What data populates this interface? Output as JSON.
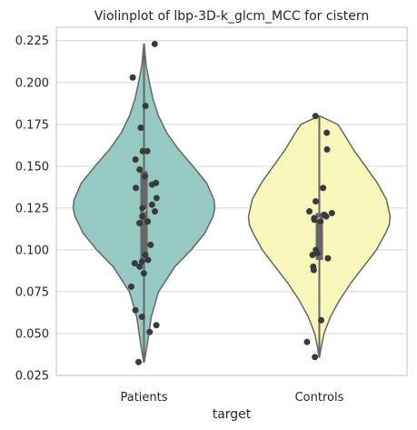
{
  "chart_data": {
    "type": "violin",
    "title": "Violinplot of lbp-3D-k_glcm_MCC for cistern",
    "xlabel": "target",
    "ylabel": "",
    "categories": [
      "Patients",
      "Controls"
    ],
    "ylim": [
      0.025,
      0.233
    ],
    "yticks": [
      0.025,
      0.05,
      0.075,
      0.1,
      0.125,
      0.15,
      0.175,
      0.2,
      0.225
    ],
    "ytick_labels": [
      "0.025",
      "0.050",
      "0.075",
      "0.100",
      "0.125",
      "0.150",
      "0.175",
      "0.200",
      "0.225"
    ],
    "grid": true,
    "series": [
      {
        "category": "Patients",
        "color": "#95c9c1",
        "min": 0.033,
        "max": 0.223,
        "q1": 0.093,
        "median": 0.124,
        "q3": 0.147,
        "density": [
          [
            0.033,
            0.3
          ],
          [
            0.045,
            4
          ],
          [
            0.06,
            8
          ],
          [
            0.075,
            16
          ],
          [
            0.09,
            34
          ],
          [
            0.1,
            52
          ],
          [
            0.11,
            67
          ],
          [
            0.12,
            76
          ],
          [
            0.125,
            78
          ],
          [
            0.13,
            77
          ],
          [
            0.14,
            69
          ],
          [
            0.15,
            54
          ],
          [
            0.16,
            38
          ],
          [
            0.17,
            25
          ],
          [
            0.18,
            16
          ],
          [
            0.19,
            10
          ],
          [
            0.2,
            6
          ],
          [
            0.21,
            2.5
          ],
          [
            0.218,
            1
          ],
          [
            0.223,
            0.3
          ]
        ],
        "points": [
          0.223,
          0.203,
          0.186,
          0.173,
          0.159,
          0.159,
          0.154,
          0.148,
          0.144,
          0.14,
          0.139,
          0.137,
          0.131,
          0.127,
          0.125,
          0.123,
          0.12,
          0.117,
          0.116,
          0.103,
          0.097,
          0.094,
          0.093,
          0.092,
          0.09,
          0.086,
          0.078,
          0.064,
          0.06,
          0.055,
          0.051,
          0.033
        ]
      },
      {
        "category": "Controls",
        "color": "#f7f6bb",
        "min": 0.036,
        "max": 0.18,
        "q1": 0.094,
        "median": 0.118,
        "q3": 0.122,
        "density": [
          [
            0.036,
            0.3
          ],
          [
            0.042,
            2
          ],
          [
            0.05,
            5
          ],
          [
            0.06,
            12
          ],
          [
            0.07,
            22
          ],
          [
            0.08,
            34
          ],
          [
            0.09,
            48
          ],
          [
            0.1,
            62
          ],
          [
            0.11,
            72
          ],
          [
            0.115,
            76
          ],
          [
            0.12,
            77
          ],
          [
            0.13,
            73
          ],
          [
            0.14,
            63
          ],
          [
            0.15,
            50
          ],
          [
            0.16,
            37
          ],
          [
            0.17,
            26
          ],
          [
            0.175,
            20
          ],
          [
            0.18,
            0.3
          ]
        ],
        "points": [
          0.18,
          0.17,
          0.16,
          0.137,
          0.129,
          0.123,
          0.122,
          0.121,
          0.12,
          0.119,
          0.118,
          0.117,
          0.1,
          0.098,
          0.097,
          0.095,
          0.09,
          0.088,
          0.058,
          0.045,
          0.036
        ]
      }
    ]
  }
}
